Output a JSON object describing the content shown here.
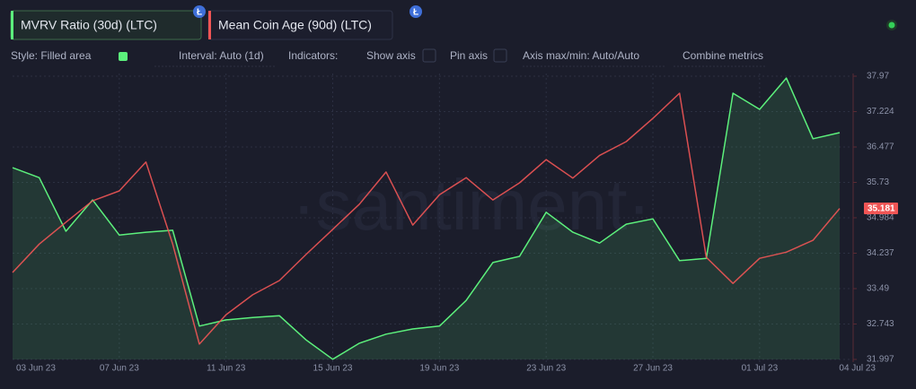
{
  "chart_data": {
    "type": "line",
    "categories": [
      "03 Jun 23",
      null,
      null,
      null,
      "07 Jun 23",
      null,
      null,
      null,
      "11 Jun 23",
      null,
      null,
      null,
      "15 Jun 23",
      null,
      null,
      null,
      "19 Jun 23",
      null,
      null,
      null,
      "23 Jun 23",
      null,
      null,
      null,
      "27 Jun 23",
      null,
      null,
      null,
      "01 Jul 23",
      null,
      null,
      "04 Jul 23"
    ],
    "series": [
      {
        "name": "MVRV Ratio (30d) (LTC)",
        "color": "#5cf07c",
        "style": "area",
        "values": [
          36.04,
          35.83,
          34.7,
          35.36,
          34.62,
          34.68,
          34.72,
          32.7,
          32.83,
          32.88,
          32.92,
          32.41,
          32.0,
          32.34,
          32.53,
          32.64,
          32.7,
          33.24,
          34.04,
          34.17,
          35.1,
          34.68,
          34.45,
          34.85,
          34.96,
          34.08,
          34.13,
          37.61,
          37.27,
          37.93,
          36.65,
          36.78
        ]
      },
      {
        "name": "Mean Coin Age (90d) (LTC)",
        "color": "#f05555",
        "style": "line",
        "values": [
          33.83,
          34.43,
          34.89,
          35.34,
          35.55,
          36.16,
          34.43,
          32.32,
          32.94,
          33.36,
          33.66,
          34.21,
          34.74,
          35.27,
          35.95,
          34.83,
          35.47,
          35.83,
          35.36,
          35.72,
          36.21,
          35.82,
          36.3,
          36.59,
          37.08,
          37.61,
          34.15,
          33.6,
          34.13,
          34.26,
          34.51,
          35.181
        ]
      }
    ],
    "ylim": [
      31.997,
      37.97
    ],
    "yticks": [
      31.997,
      32.743,
      33.49,
      34.237,
      34.984,
      35.73,
      36.477,
      37.224,
      37.97
    ],
    "grid": true,
    "coin_icon": "Ł",
    "toolbar": [
      "Style: Filled area",
      "Interval: Auto (1d)",
      "Indicators:",
      "Show axis",
      "Pin axis",
      "Axis max/min: Auto/Auto",
      "Combine metrics"
    ],
    "watermark": "·santiment·"
  }
}
